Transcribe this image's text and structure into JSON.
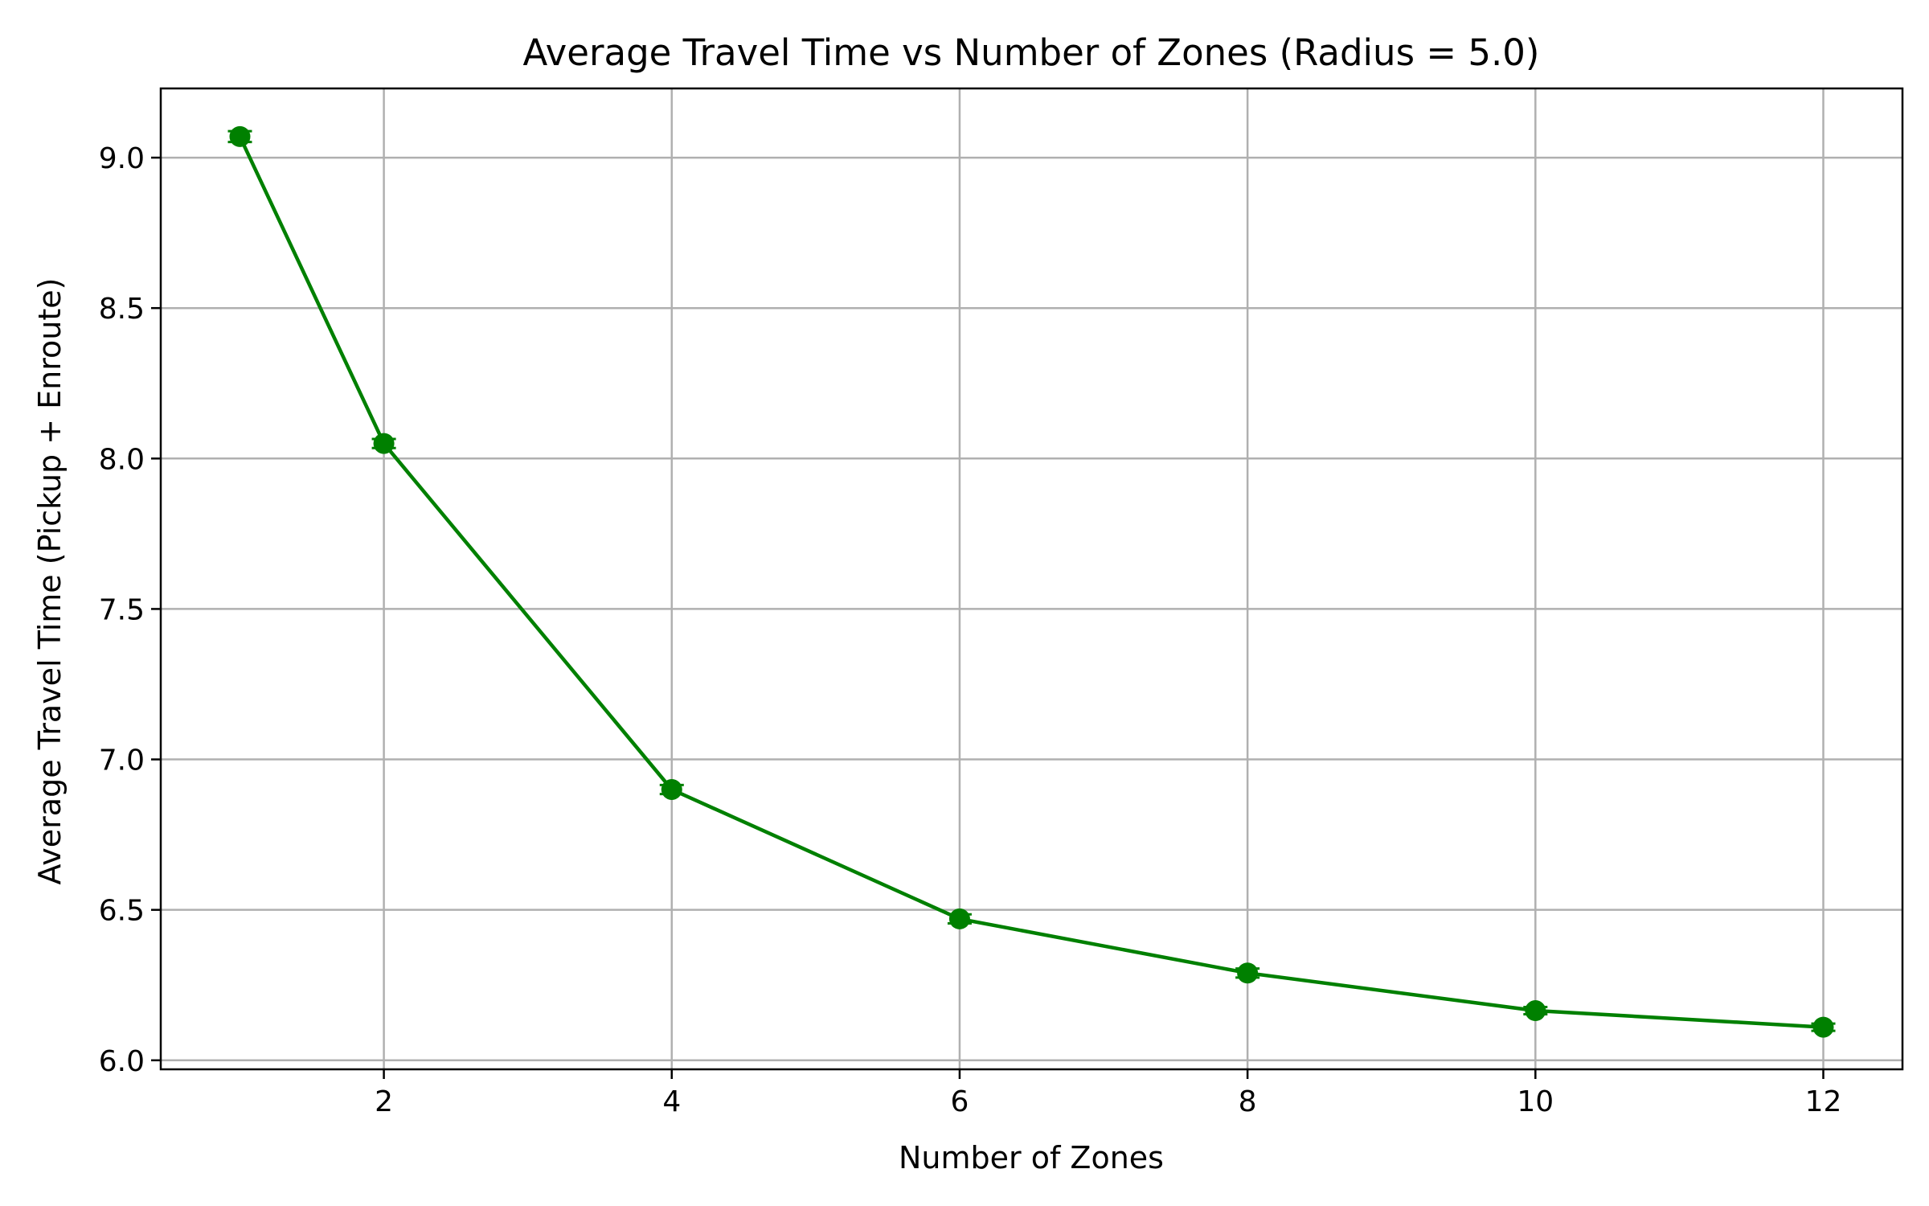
{
  "chart_data": {
    "type": "line",
    "title": "Average Travel Time vs Number of Zones (Radius = 5.0)",
    "xlabel": "Number of Zones",
    "ylabel": "Average Travel Time (Pickup + Enroute)",
    "xlim": [
      0.45,
      12.55
    ],
    "ylim": [
      5.97,
      9.23
    ],
    "xticks": [
      2,
      4,
      6,
      8,
      10,
      12
    ],
    "yticks": [
      6.0,
      6.5,
      7.0,
      7.5,
      8.0,
      8.5,
      9.0
    ],
    "ytick_labels": [
      "6.0",
      "6.5",
      "7.0",
      "7.5",
      "8.0",
      "8.5",
      "9.0"
    ],
    "grid": true,
    "color": "#008000",
    "series": [
      {
        "x": [
          1,
          2,
          4,
          6,
          8,
          10,
          12
        ],
        "y": [
          9.07,
          8.05,
          6.9,
          6.47,
          6.29,
          6.165,
          6.11
        ],
        "yerr": [
          0.018,
          0.015,
          0.015,
          0.015,
          0.015,
          0.012,
          0.012
        ]
      }
    ]
  }
}
